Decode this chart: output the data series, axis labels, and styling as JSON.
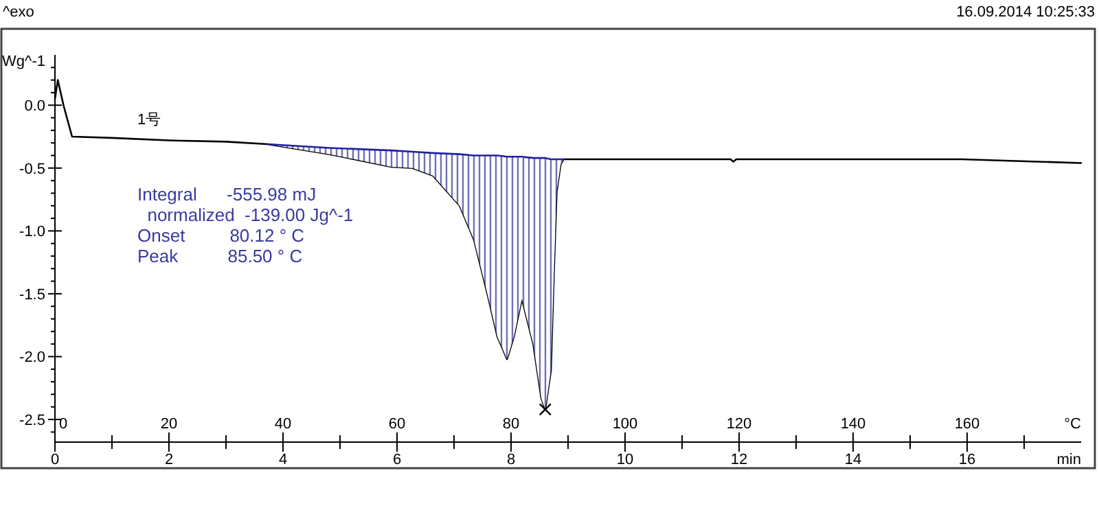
{
  "chart_data": {
    "type": "line",
    "ylabel": "Wg^-1",
    "xlabel": "min",
    "x2label": "°C",
    "annotations": [
      "^exo",
      "16.09.2014 10:25:33",
      "Integral      -555.98 mJ",
      "  normalized  -139.00 Jg^-1",
      "Onset         80.12 ° C",
      "Peak          85.50 ° C"
    ],
    "xlim": [
      0,
      18
    ],
    "xticks": [
      0,
      {
        "value": 1,
        "label": null
      },
      2,
      {
        "value": 3,
        "label": null
      },
      4,
      {
        "value": 5,
        "label": null
      },
      6,
      {
        "value": 7,
        "label": null
      },
      8,
      {
        "value": 9,
        "label": null
      },
      10,
      {
        "value": 11,
        "label": null
      },
      12,
      {
        "value": 13,
        "label": null
      },
      14,
      {
        "value": 15,
        "label": null
      },
      16,
      {
        "value": 17,
        "label": null
      }
    ],
    "x2lim": [
      0,
      180
    ],
    "x2ticks": [
      0,
      20,
      40,
      60,
      80,
      100,
      120,
      140,
      160
    ],
    "ylim": [
      -2.68,
      0.4
    ],
    "yticks": [
      {
        "value": 0.3,
        "label": null
      },
      {
        "value": 0.2,
        "label": null
      },
      {
        "value": 0.1,
        "label": null
      },
      {
        "value": 0,
        "label": "0.0"
      },
      {
        "value": -0.1,
        "label": null
      },
      {
        "value": -0.2,
        "label": null
      },
      {
        "value": -0.3,
        "label": null
      },
      {
        "value": -0.4,
        "label": null
      },
      -0.5,
      {
        "value": -0.6,
        "label": null
      },
      {
        "value": -0.7,
        "label": null
      },
      {
        "value": -0.8,
        "label": null
      },
      {
        "value": -0.9,
        "label": null
      },
      {
        "value": -1,
        "label": "-1.0"
      },
      {
        "value": -1.1,
        "label": null
      },
      {
        "value": -1.2,
        "label": null
      },
      {
        "value": -1.3,
        "label": null
      },
      {
        "value": -1.4,
        "label": null
      },
      -1.5,
      {
        "value": -1.6,
        "label": null
      },
      {
        "value": -1.7,
        "label": null
      },
      {
        "value": -1.8,
        "label": null
      },
      {
        "value": -1.9,
        "label": null
      },
      {
        "value": -2,
        "label": "-2.0"
      },
      {
        "value": -2.1,
        "label": null
      },
      {
        "value": -2.2,
        "label": null
      },
      {
        "value": -2.3,
        "label": null
      },
      {
        "value": -2.4,
        "label": null
      },
      -2.5,
      {
        "value": -2.6,
        "label": null
      }
    ],
    "line_style": "solid",
    "series": [
      {
        "name": "1号",
        "color": "#000000",
        "x": [
          0,
          0.05,
          0.15,
          0.3,
          1,
          2,
          3,
          3.73,
          4.82,
          5.9,
          6.27,
          6.63,
          7.1,
          7.35,
          7.59,
          7.76,
          7.93,
          8.05,
          8.19,
          8.39,
          8.53,
          8.6,
          8.7,
          8.75,
          8.8,
          8.87,
          8.92,
          10,
          11.85,
          11.9,
          11.95,
          14,
          15.9,
          18
        ],
        "values": [
          0.05,
          0.2,
          0.0,
          -0.25,
          -0.26,
          -0.28,
          -0.29,
          -0.31,
          -0.39,
          -0.49,
          -0.5,
          -0.56,
          -0.8,
          -1.07,
          -1.51,
          -1.84,
          -2.02,
          -1.84,
          -1.54,
          -1.9,
          -2.33,
          -2.42,
          -2.11,
          -1.35,
          -0.69,
          -0.47,
          -0.43,
          -0.43,
          -0.43,
          -0.45,
          -0.43,
          -0.43,
          -0.43,
          -0.46
        ]
      },
      {
        "type": "line",
        "color": "#2020a0",
        "x": [
          3.73,
          4.82,
          5.9,
          6.27,
          6.63,
          7.1,
          7.35,
          7.59,
          7.76,
          7.93,
          8.05,
          8.19,
          8.39,
          8.53,
          8.6,
          8.7,
          8.75,
          8.8,
          8.87,
          8.92
        ],
        "values": [
          -0.31,
          -0.34,
          -0.36,
          -0.37,
          -0.38,
          -0.39,
          -0.4,
          -0.4,
          -0.4,
          -0.41,
          -0.41,
          -0.41,
          -0.42,
          -0.42,
          -0.42,
          -0.43,
          -0.43,
          -0.43,
          -0.43,
          -0.43
        ],
        "upper": [
          -0.31,
          -0.34,
          -0.36,
          -0.37,
          -0.38,
          -0.39,
          -0.4,
          -0.4,
          -0.4,
          -0.41,
          -0.41,
          -0.41,
          -0.42,
          -0.42,
          -0.42,
          -0.43,
          -0.43,
          -0.43,
          -0.43,
          -0.43
        ],
        "lower": [
          -0.31,
          -0.39,
          -0.49,
          -0.5,
          -0.56,
          -0.8,
          -1.07,
          -1.51,
          -1.84,
          -2.02,
          -1.84,
          -1.54,
          -1.9,
          -2.33,
          -2.42,
          -2.11,
          -1.35,
          -0.69,
          -0.47,
          -0.43
        ]
      },
      {
        "type": "scatter",
        "marker": "cross",
        "color": "#000000",
        "x": [
          8.6
        ],
        "values": [
          -2.42
        ]
      }
    ]
  }
}
